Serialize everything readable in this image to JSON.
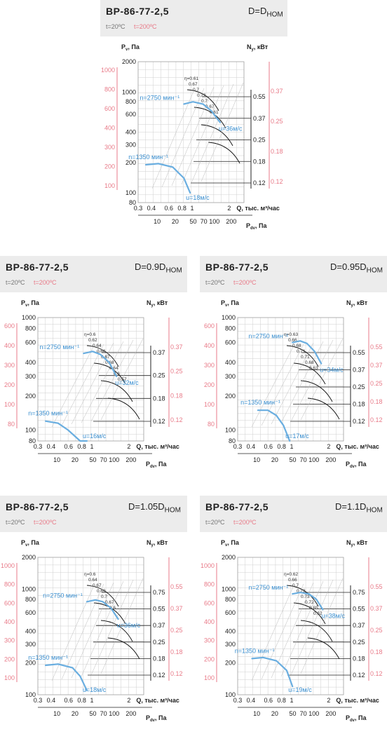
{
  "colors": {
    "blue": "#6aaee0",
    "blue_text": "#3a8fd0",
    "pink": "#e87a88",
    "grid": "#cfcfcf",
    "header_bg": "#ececec"
  },
  "common": {
    "t20": "t=20ºC",
    "t200": "t=200ºC",
    "pv_label": "P",
    "pv_sub": "v",
    "pv_unit": ", Па",
    "ny_label": "N",
    "ny_sub": "y",
    "ny_unit": ", кВт",
    "q_label": "Q, тыс. м³/час",
    "pdv_label": "P",
    "pdv_sub": "dv",
    "pdv_unit": ", Па",
    "x_ticks": [
      "0.3",
      "0.4",
      "0.6",
      "0.8",
      "1",
      "2"
    ],
    "pdv_ticks": [
      "10",
      "20",
      "50",
      "70",
      "100",
      "200"
    ]
  },
  "chart_data": [
    {
      "type": "line",
      "title": "ВР-86-77-2,5",
      "d_label": "D=D",
      "d_sub": "НОМ",
      "y_ticks": [
        "2000",
        "1000",
        "800",
        "600",
        "400",
        "300",
        "200",
        "100",
        "80"
      ],
      "pink_left": [
        "1000",
        "800",
        "600",
        "400",
        "300",
        "200",
        "100"
      ],
      "ny_ticks": [
        "0.55",
        "0.37",
        "0.25",
        "0.18",
        "0.12"
      ],
      "ny_pink": [
        "0.37",
        "0.25",
        "0.18",
        "0.12"
      ],
      "eta": [
        "η=0.61",
        "0.67",
        "0.7",
        "0.72",
        "0.7",
        "0.67",
        "0.61"
      ],
      "n_high": "n=2750 мин⁻¹",
      "u_high": "u=36м/с",
      "n_low": "n=1350 мин⁻¹",
      "u_low": "u=18м/с",
      "series": [
        {
          "name": "n=2750 мин⁻¹",
          "x": [
            0.75,
            0.9,
            1.1,
            1.3,
            1.55
          ],
          "y": [
            760,
            800,
            760,
            650,
            500
          ]
        },
        {
          "name": "n=1350 мин⁻¹",
          "x": [
            0.35,
            0.45,
            0.6,
            0.75,
            0.85
          ],
          "y": [
            190,
            195,
            180,
            140,
            100
          ]
        }
      ]
    },
    {
      "type": "line",
      "title": "ВР-86-77-2,5",
      "d_label": "D=0.9D",
      "d_sub": "НОМ",
      "y_ticks": [
        "1000",
        "800",
        "600",
        "400",
        "300",
        "200",
        "100",
        "80"
      ],
      "pink_left": [
        "600",
        "400",
        "300",
        "200",
        "100",
        "80"
      ],
      "ny_ticks": [
        "0.37",
        "0.25",
        "0.18",
        "0.12"
      ],
      "ny_pink": [
        "0.37",
        "0.25",
        "0.18",
        "0.12"
      ],
      "eta": [
        "η=0.6",
        "0.62",
        "0.64",
        "0.66",
        "0.67",
        "0.68",
        "0.64",
        "0.6",
        "0.57"
      ],
      "n_high": "n=2750 мин⁻¹",
      "u_high": "u=32м/с",
      "n_low": "n=1350 мин⁻¹",
      "u_low": "u=16м/с",
      "series": [
        {
          "name": "n=2750 мин⁻¹",
          "x": [
            0.75,
            0.9,
            1.05,
            1.25,
            1.45
          ],
          "y": [
            480,
            500,
            470,
            400,
            300
          ]
        },
        {
          "name": "n=1350 мин⁻¹",
          "x": [
            0.35,
            0.45,
            0.55,
            0.7,
            0.8
          ],
          "y": [
            120,
            115,
            100,
            80,
            60
          ]
        }
      ]
    },
    {
      "type": "line",
      "title": "ВР-86-77-2,5",
      "d_label": "D=0.95D",
      "d_sub": "НОМ",
      "y_ticks": [
        "1000",
        "800",
        "600",
        "400",
        "300",
        "200",
        "100",
        "80"
      ],
      "pink_left": [
        "600",
        "400",
        "300",
        "200",
        "100",
        "80"
      ],
      "ny_ticks": [
        "0.55",
        "0.37",
        "0.25",
        "0.18",
        "0.12"
      ],
      "ny_pink": [
        "0.55",
        "0.37",
        "0.25",
        "0.18",
        "0.12"
      ],
      "eta": [
        "η=0.63",
        "0.66",
        "0.68",
        "0.71",
        "0.71",
        "0.68",
        "0.63"
      ],
      "n_high": "n=2750 мин⁻¹",
      "u_high": "u=34м/с",
      "n_low": "n=1350 мин⁻¹",
      "u_low": "u=17м/с",
      "series": [
        {
          "name": "n=2750 мин⁻¹",
          "x": [
            0.9,
            1.05,
            1.2,
            1.4,
            1.6
          ],
          "y": [
            600,
            620,
            590,
            500,
            390
          ]
        },
        {
          "name": "n=1350 мин⁻¹",
          "x": [
            0.45,
            0.55,
            0.65,
            0.75,
            0.85
          ],
          "y": [
            150,
            150,
            135,
            110,
            80
          ]
        }
      ]
    },
    {
      "type": "line",
      "title": "ВР-86-77-2,5",
      "d_label": "D=1.05D",
      "d_sub": "НОМ",
      "y_ticks": [
        "2000",
        "1000",
        "800",
        "600",
        "400",
        "300",
        "200",
        "100"
      ],
      "pink_left": [
        "1000",
        "800",
        "600",
        "400",
        "300",
        "200",
        "100"
      ],
      "ny_ticks": [
        "0.75",
        "0.55",
        "0.37",
        "0.25",
        "0.18",
        "0.12"
      ],
      "ny_pink": [
        "0.55",
        "0.37",
        "0.25",
        "0.18",
        "0.12"
      ],
      "eta": [
        "η=0.6",
        "0.64",
        "0.67",
        "0.69",
        "0.7",
        "0.67",
        "0.6"
      ],
      "n_high": "n=2750 мин⁻¹",
      "u_high": "u=36м/с",
      "n_low": "n=1350 мин⁻¹",
      "u_low": "u=18м/с",
      "series": [
        {
          "name": "n=2750 мин⁻¹",
          "x": [
            0.8,
            0.95,
            1.1,
            1.3,
            1.5
          ],
          "y": [
            760,
            790,
            760,
            660,
            520
          ]
        },
        {
          "name": "n=1350 мин⁻¹",
          "x": [
            0.35,
            0.45,
            0.6,
            0.7,
            0.8
          ],
          "y": [
            190,
            195,
            180,
            150,
            110
          ]
        }
      ]
    },
    {
      "type": "line",
      "title": "ВР-86-77-2,5",
      "d_label": "D=1.1D",
      "d_sub": "НОМ",
      "y_ticks": [
        "2000",
        "1000",
        "800",
        "600",
        "400",
        "300",
        "200",
        "100"
      ],
      "pink_left": [
        "1000",
        "800",
        "600",
        "400",
        "300",
        "200",
        "100"
      ],
      "ny_ticks": [
        "0.75",
        "0.55",
        "0.37",
        "0.25",
        "0.18",
        "0.12"
      ],
      "ny_pink": [
        "0.55",
        "0.37",
        "0.25",
        "0.18",
        "0.12"
      ],
      "eta": [
        "η=0.62",
        "0.66",
        "0.7",
        "0.72",
        "0.73",
        "0.72",
        "0.65",
        "0.62"
      ],
      "n_high": "n=2750 мин⁻¹",
      "u_high": "u=38м/с",
      "n_low": "n=1350 мин⁻¹",
      "u_low": "u=19м/с",
      "series": [
        {
          "name": "n=2750 мин⁻¹",
          "x": [
            0.9,
            1.05,
            1.25,
            1.45,
            1.65
          ],
          "y": [
            900,
            930,
            900,
            800,
            640
          ]
        },
        {
          "name": "n=1350 мин⁻¹",
          "x": [
            0.4,
            0.5,
            0.65,
            0.8,
            0.9
          ],
          "y": [
            220,
            225,
            210,
            170,
            120
          ]
        }
      ]
    }
  ]
}
